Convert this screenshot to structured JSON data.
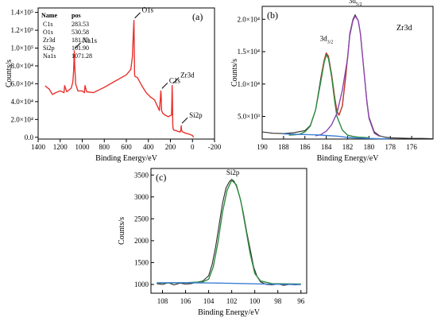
{
  "figure": {
    "background": "#ffffff"
  },
  "chart_data": [
    {
      "id": "a",
      "type": "line",
      "panel_label": "(a)",
      "xlabel": "Binding Energy/eV",
      "ylabel": "Counts/s",
      "xlim": [
        1400,
        -200
      ],
      "ylim": [
        -2000,
        145000
      ],
      "x_reversed": true,
      "xticks": [
        1400,
        1200,
        1000,
        800,
        600,
        400,
        200,
        0,
        -200
      ],
      "xtick_labels": [
        "1400",
        "1200",
        "1000",
        "800",
        "600",
        "400",
        "200",
        "0",
        "-200"
      ],
      "yticks": [
        0,
        20000,
        40000,
        60000,
        80000,
        100000,
        120000,
        140000
      ],
      "ytick_labels": [
        "0.0",
        "2.0×10⁴",
        "4.0×10⁴",
        "6.0×10⁴",
        "8.0×10⁴",
        "1.0×10⁵",
        "1.2×10⁵",
        "1.4×10⁵"
      ],
      "grid": false,
      "series": [
        {
          "color": "#e8322d",
          "x": [
            1335,
            1330,
            1300,
            1270,
            1240,
            1200,
            1165,
            1160,
            1140,
            1100,
            1085,
            1078,
            1072,
            1068,
            1060,
            1040,
            1000,
            980,
            975,
            960,
            900,
            800,
            700,
            600,
            560,
            545,
            536,
            531,
            528,
            525,
            520,
            500,
            460,
            420,
            380,
            345,
            330,
            300,
            292,
            287,
            284,
            282,
            280,
            270,
            250,
            220,
            190,
            187,
            184,
            181,
            179,
            176,
            170,
            150,
            130,
            110,
            105,
            102,
            99,
            90,
            60,
            40,
            20,
            0,
            -10
          ],
          "y": [
            58000,
            57000,
            54000,
            48000,
            50000,
            52000,
            50000,
            58000,
            51000,
            55000,
            62000,
            75000,
            97000,
            80000,
            60000,
            52000,
            52000,
            50000,
            58000,
            51000,
            50000,
            56000,
            63000,
            70000,
            76000,
            90000,
            118000,
            131000,
            100000,
            70000,
            68000,
            67000,
            58000,
            50000,
            45000,
            42000,
            38000,
            30000,
            42000,
            52000,
            48000,
            38000,
            30000,
            27000,
            25000,
            23000,
            25000,
            40000,
            58000,
            42000,
            15000,
            10000,
            8000,
            7500,
            6500,
            6000,
            9000,
            13000,
            8000,
            6000,
            4500,
            4000,
            3000,
            2000,
            0
          ]
        }
      ],
      "peak_labels": [
        {
          "text": "Na1s",
          "x": 1072,
          "y": 97000
        },
        {
          "text": "O1s",
          "x": 531,
          "y": 131000
        },
        {
          "text": "C1s",
          "x": 284,
          "y": 52000
        },
        {
          "text": "Zr3d",
          "x": 181,
          "y": 58000
        },
        {
          "text": "Si2p",
          "x": 102,
          "y": 13000
        }
      ],
      "table": {
        "headers": [
          "Name",
          "pos"
        ],
        "rows": [
          [
            "C1s",
            "283.53"
          ],
          [
            "O1s",
            "530.58"
          ],
          [
            "Zr3d",
            "181.33"
          ],
          [
            "Si2p",
            "101.90"
          ],
          [
            "Na1s",
            "1071.28"
          ]
        ]
      }
    },
    {
      "id": "b",
      "type": "line",
      "panel_label": "(b)",
      "title": "Zr3d",
      "xlabel": "Binding Energy/eV",
      "ylabel": "Counts/s",
      "xlim": [
        190,
        174
      ],
      "ylim": [
        1500,
        22000
      ],
      "x_reversed": true,
      "xticks": [
        190,
        188,
        186,
        184,
        182,
        180,
        178,
        176
      ],
      "xtick_labels": [
        "190",
        "188",
        "186",
        "184",
        "182",
        "180",
        "178",
        "176"
      ],
      "yticks": [
        5000,
        10000,
        15000,
        20000
      ],
      "ytick_labels": [
        "5.0×10³",
        "1.0×10⁴",
        "1.5×10⁴",
        "2.0×10⁴"
      ],
      "grid": false,
      "series": [
        {
          "role": "raw",
          "color": "#2a2a2a",
          "x": [
            190,
            189,
            188,
            187,
            186,
            185.5,
            185,
            184.5,
            184.2,
            184,
            183.8,
            183.5,
            183.2,
            183,
            182.8,
            182.5,
            182.2,
            182,
            181.8,
            181.5,
            181.3,
            181,
            180.8,
            180.5,
            180.2,
            180,
            179.5,
            179,
            178.5,
            178,
            177,
            176,
            175,
            174
          ],
          "y": [
            2600,
            2400,
            2350,
            2500,
            2800,
            3600,
            6000,
            11000,
            13600,
            14800,
            14300,
            11500,
            7800,
            5800,
            5200,
            6600,
            10800,
            14200,
            17800,
            20000,
            20700,
            19800,
            17800,
            12500,
            7500,
            4900,
            2600,
            2000,
            1800,
            1700,
            1650,
            1600,
            1600,
            1550
          ]
        },
        {
          "role": "fit",
          "color": "#c0392b",
          "x": [
            184.5,
            184.2,
            184,
            183.8,
            183.5,
            183.2,
            183,
            182.8,
            182.5,
            182.2,
            182
          ],
          "y": [
            11000,
            13600,
            14800,
            14300,
            11500,
            7800,
            5800,
            5200,
            6600,
            10800,
            14200
          ]
        },
        {
          "role": "peak 3d3/2",
          "color": "#2e8b3e",
          "x": [
            187.5,
            187,
            186.5,
            186,
            185.5,
            185,
            184.5,
            184.2,
            184,
            183.8,
            183.5,
            183.2,
            183,
            182.5,
            182,
            181.5,
            181,
            180.5,
            180
          ],
          "y": [
            2100,
            2150,
            2250,
            2600,
            3500,
            6000,
            10500,
            13300,
            14500,
            14000,
            11200,
            7200,
            5000,
            2900,
            2100,
            1900,
            1800,
            1750,
            1700
          ]
        },
        {
          "role": "peak 3d5/2",
          "color": "#8e44ad",
          "x": [
            185,
            184.5,
            184,
            183.5,
            183,
            182.5,
            182,
            181.8,
            181.5,
            181.3,
            181,
            180.8,
            180.5,
            180.2,
            180,
            179.5,
            179
          ],
          "y": [
            2000,
            2200,
            2700,
            3700,
            5500,
            9000,
            14000,
            17500,
            19800,
            20500,
            19800,
            17800,
            12500,
            7300,
            4700,
            2400,
            1900
          ]
        },
        {
          "role": "background",
          "color": "#3d7fd6",
          "x": [
            188,
            187,
            186,
            185,
            184,
            183,
            182.5,
            182,
            181,
            180,
            179,
            178
          ],
          "y": [
            2300,
            2250,
            2200,
            2150,
            2050,
            1950,
            1850,
            1750,
            1650,
            1600,
            1550,
            1550
          ]
        }
      ],
      "peak_labels": [
        {
          "base": "3d",
          "sub": "3/2",
          "x": 184,
          "y": 15200
        },
        {
          "base": "3d",
          "sub": "5/2",
          "x": 181.3,
          "y": 21000
        }
      ]
    },
    {
      "id": "c",
      "type": "line",
      "panel_label": "(c)",
      "xlabel": "Binding Energy/eV",
      "ylabel": "Counts/s",
      "xlim": [
        109,
        95.5
      ],
      "ylim": [
        800,
        3650
      ],
      "x_reversed": true,
      "xticks": [
        108,
        106,
        104,
        102,
        100,
        98,
        96
      ],
      "xtick_labels": [
        "108",
        "106",
        "104",
        "102",
        "100",
        "98",
        "96"
      ],
      "yticks": [
        1000,
        1500,
        2000,
        2500,
        3000,
        3500
      ],
      "ytick_labels": [
        "1000",
        "1500",
        "2000",
        "2500",
        "3000",
        "3500"
      ],
      "grid": false,
      "series": [
        {
          "role": "raw",
          "color": "#2a2a2a",
          "x": [
            108.5,
            108,
            107.5,
            107,
            106.5,
            106,
            105.5,
            105,
            104.5,
            104,
            103.7,
            103.4,
            103.1,
            102.8,
            102.5,
            102.2,
            102,
            101.8,
            101.6,
            101.3,
            101,
            100.7,
            100.4,
            100.1,
            99.8,
            99.5,
            99,
            98.5,
            98,
            97.5,
            97,
            96.5,
            96
          ],
          "y": [
            1020,
            1000,
            1040,
            990,
            1030,
            1010,
            1020,
            1050,
            1080,
            1200,
            1450,
            1850,
            2350,
            2850,
            3200,
            3350,
            3400,
            3360,
            3250,
            3000,
            2650,
            2200,
            1800,
            1400,
            1180,
            1060,
            1000,
            990,
            1010,
            980,
            1000,
            990,
            1000
          ]
        },
        {
          "role": "fit",
          "color": "#2e8b3e",
          "x": [
            108.5,
            106,
            104.5,
            104,
            103.6,
            103.2,
            102.8,
            102.4,
            102,
            101.6,
            101.2,
            100.8,
            100.4,
            100,
            99.5,
            98.5,
            96
          ],
          "y": [
            1030,
            1040,
            1060,
            1120,
            1400,
            1950,
            2650,
            3150,
            3380,
            3280,
            2900,
            2300,
            1700,
            1250,
            1080,
            1020,
            1010
          ]
        },
        {
          "role": "background",
          "color": "#3d7fd6",
          "x": [
            108.5,
            106,
            104,
            102,
            100,
            98,
            96
          ],
          "y": [
            1040,
            1040,
            1035,
            1025,
            1015,
            1005,
            1000
          ]
        }
      ],
      "peak_labels": [
        {
          "text": "Si2p",
          "x": 101.9,
          "y": 3430
        }
      ]
    }
  ]
}
